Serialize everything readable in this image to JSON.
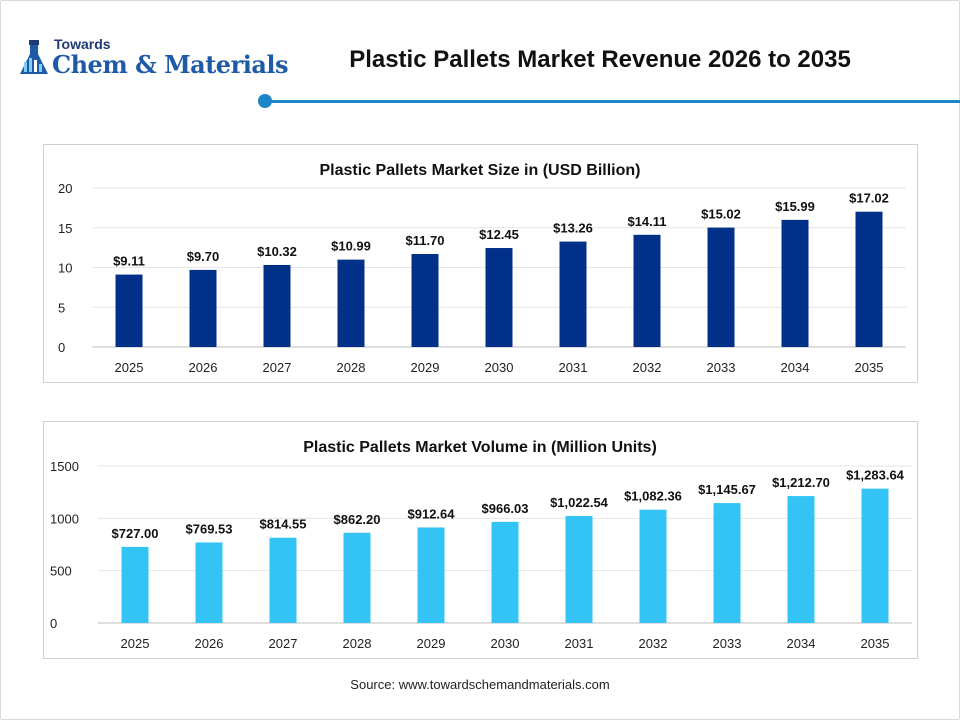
{
  "header": {
    "logo_small": "Towards",
    "logo_big": "Chem & Materials",
    "title": "Plastic Pallets Market Revenue 2026 to 2035",
    "accent_color": "#1d86c8"
  },
  "chart_data": [
    {
      "type": "bar",
      "title": "Plastic Pallets Market Size in (USD Billion)",
      "xlabel": "",
      "ylabel": "",
      "categories": [
        "2025",
        "2026",
        "2027",
        "2028",
        "2029",
        "2030",
        "2031",
        "2032",
        "2033",
        "2034",
        "2035"
      ],
      "values": [
        9.11,
        9.7,
        10.32,
        10.99,
        11.7,
        12.45,
        13.26,
        14.11,
        15.02,
        15.99,
        17.02
      ],
      "value_labels": [
        "$9.11",
        "$9.70",
        "$10.32",
        "$10.99",
        "$11.70",
        "$12.45",
        "$13.26",
        "$14.11",
        "$15.02",
        "$15.99",
        "$17.02"
      ],
      "ylim": [
        0,
        20
      ],
      "yticks": [
        "0",
        "5",
        "10",
        "15",
        "20"
      ],
      "color": "#003087",
      "grid": true,
      "legend": "none"
    },
    {
      "type": "bar",
      "title": "Plastic Pallets Market Volume in (Million Units)",
      "xlabel": "",
      "ylabel": "",
      "categories": [
        "2025",
        "2026",
        "2027",
        "2028",
        "2029",
        "2030",
        "2031",
        "2032",
        "2033",
        "2034",
        "2035"
      ],
      "values": [
        727.0,
        769.53,
        814.55,
        862.2,
        912.64,
        966.03,
        1022.54,
        1082.36,
        1145.67,
        1212.7,
        1283.64
      ],
      "value_labels": [
        "$727.00",
        "$769.53",
        "$814.55",
        "$862.20",
        "$912.64",
        "$966.03",
        "$1,022.54",
        "$1,082.36",
        "$1,145.67",
        "$1,212.70",
        "$1,283.64"
      ],
      "ylim": [
        0,
        1500
      ],
      "yticks": [
        "0",
        "500",
        "1000",
        "1500"
      ],
      "color": "#33c4f5",
      "grid": true,
      "legend": "none"
    }
  ],
  "footer": {
    "source": "Source: www.towardschemandmaterials.com"
  }
}
